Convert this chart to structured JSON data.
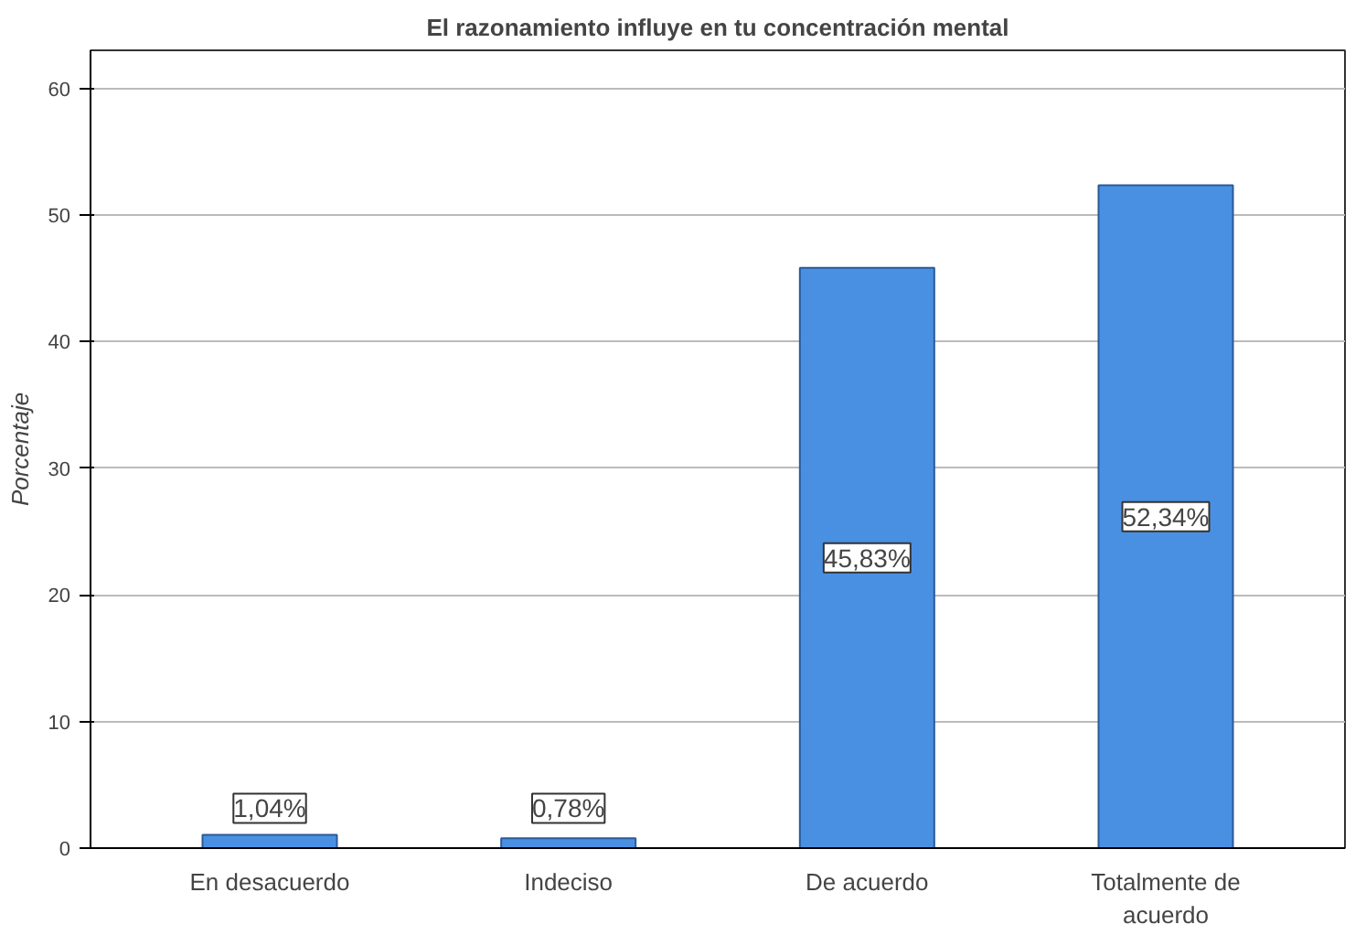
{
  "chart_data": {
    "type": "bar",
    "title": "El razonamiento influye en tu concentración mental",
    "ylabel": "Porcentaje",
    "categories": [
      "En desacuerdo",
      "Indeciso",
      "De acuerdo",
      "Totalmente de\nacuerdo"
    ],
    "values": [
      1.04,
      0.78,
      45.83,
      52.34
    ],
    "value_labels": [
      "1,04%",
      "0,78%",
      "45,83%",
      "52,34%"
    ],
    "color": "#4a90e2",
    "ylim": [
      0,
      63
    ],
    "yticks": [
      0,
      10,
      20,
      30,
      40,
      50,
      60
    ],
    "grid": "y"
  }
}
